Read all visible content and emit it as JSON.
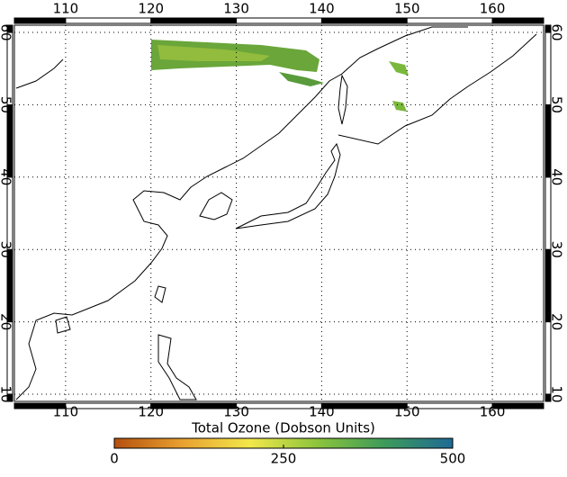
{
  "chart_data": {
    "type": "map",
    "xlim": [
      104,
      166
    ],
    "xticks": [
      110,
      120,
      130,
      140,
      150,
      160
    ],
    "ylim": [
      9,
      61
    ],
    "yticks": [
      10,
      20,
      30,
      40,
      50,
      60
    ],
    "grid": true,
    "colorbar": {
      "title": "Total Ozone (Dobson Units)",
      "lim": [
        0,
        500
      ],
      "ticks": [
        0,
        250,
        500
      ],
      "colors": [
        "#b4500e",
        "#e8a030",
        "#f2e84a",
        "#8cc43c",
        "#3c9a5a",
        "#1e6a96"
      ]
    }
  }
}
